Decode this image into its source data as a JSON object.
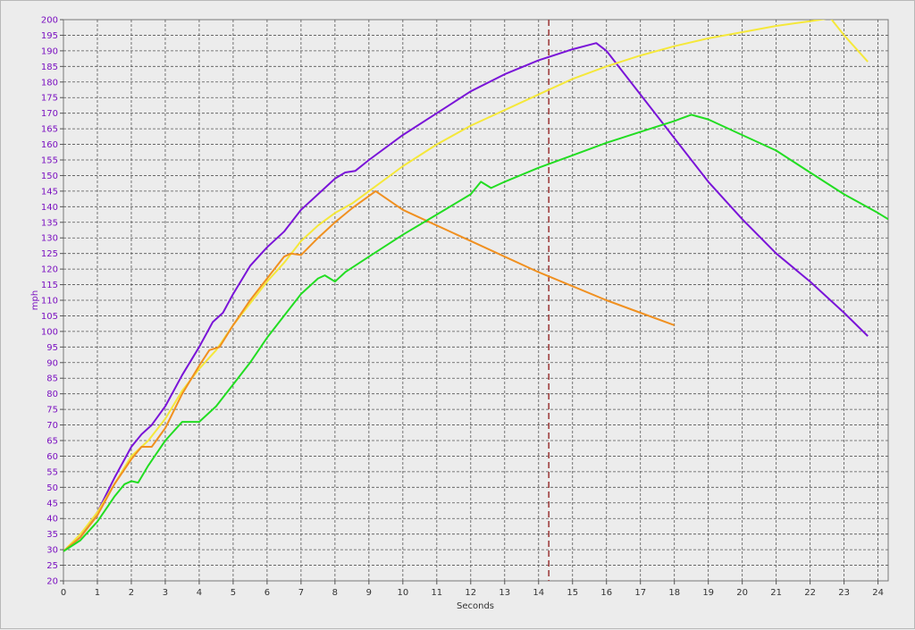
{
  "chart_data": {
    "type": "line",
    "xlabel": "Seconds",
    "ylabel": "mph",
    "xlim": [
      0,
      24.3
    ],
    "ylim": [
      20,
      200
    ],
    "x_ticks": [
      0,
      1,
      2,
      3,
      4,
      5,
      6,
      7,
      8,
      9,
      10,
      11,
      12,
      13,
      14,
      15,
      16,
      17,
      18,
      19,
      20,
      21,
      22,
      23,
      24
    ],
    "y_ticks": [
      20,
      25,
      30,
      35,
      40,
      45,
      50,
      55,
      60,
      65,
      70,
      75,
      80,
      85,
      90,
      95,
      100,
      105,
      110,
      115,
      120,
      125,
      130,
      135,
      140,
      145,
      150,
      155,
      160,
      165,
      170,
      175,
      180,
      185,
      190,
      195,
      200
    ],
    "grid": true,
    "legend": "none",
    "marker_line": {
      "x": 14.3,
      "color": "#a04040"
    },
    "series": [
      {
        "color": "#7a14d8",
        "points": [
          [
            0,
            29.5
          ],
          [
            0.5,
            34
          ],
          [
            1,
            42
          ],
          [
            1.5,
            53
          ],
          [
            2,
            63
          ],
          [
            2.3,
            67
          ],
          [
            2.6,
            70
          ],
          [
            3,
            76
          ],
          [
            3.5,
            86
          ],
          [
            4,
            95
          ],
          [
            4.4,
            103
          ],
          [
            4.7,
            106
          ],
          [
            5,
            112
          ],
          [
            5.5,
            121
          ],
          [
            6,
            127
          ],
          [
            6.5,
            132
          ],
          [
            7,
            139
          ],
          [
            7.5,
            144
          ],
          [
            8,
            149
          ],
          [
            8.3,
            151
          ],
          [
            8.6,
            151.5
          ],
          [
            9,
            155
          ],
          [
            10,
            163
          ],
          [
            11,
            170
          ],
          [
            12,
            177
          ],
          [
            13,
            182.5
          ],
          [
            14,
            187
          ],
          [
            15,
            190.5
          ],
          [
            15.7,
            192.5
          ],
          [
            16,
            190
          ],
          [
            17,
            176
          ],
          [
            18,
            162
          ],
          [
            19,
            148
          ],
          [
            20,
            136
          ],
          [
            21,
            125
          ],
          [
            22,
            116
          ],
          [
            23,
            106
          ],
          [
            23.7,
            98.5
          ]
        ]
      },
      {
        "color": "#f5e83a",
        "points": [
          [
            0,
            29.5
          ],
          [
            0.5,
            35
          ],
          [
            1,
            42
          ],
          [
            1.5,
            51
          ],
          [
            2,
            60
          ],
          [
            2.5,
            65
          ],
          [
            3,
            72
          ],
          [
            3.5,
            81
          ],
          [
            4,
            88
          ],
          [
            4.5,
            94
          ],
          [
            5,
            102
          ],
          [
            5.5,
            109
          ],
          [
            6,
            116
          ],
          [
            6.5,
            122
          ],
          [
            7,
            129
          ],
          [
            7.5,
            134
          ],
          [
            8,
            138
          ],
          [
            8.5,
            141
          ],
          [
            9,
            145
          ],
          [
            10,
            153
          ],
          [
            11,
            160
          ],
          [
            12,
            166
          ],
          [
            13,
            171
          ],
          [
            14,
            176
          ],
          [
            15,
            181
          ],
          [
            16,
            185
          ],
          [
            17,
            188.5
          ],
          [
            18,
            191.5
          ],
          [
            19,
            194
          ],
          [
            20,
            196
          ],
          [
            21,
            198
          ],
          [
            22,
            199.5
          ],
          [
            22.6,
            200.5
          ],
          [
            23,
            195
          ],
          [
            23.7,
            186.5
          ]
        ]
      },
      {
        "color": "#f09020",
        "points": [
          [
            0,
            29.5
          ],
          [
            0.5,
            34
          ],
          [
            1,
            41
          ],
          [
            1.5,
            51
          ],
          [
            2,
            59
          ],
          [
            2.3,
            63
          ],
          [
            2.6,
            63
          ],
          [
            3,
            69
          ],
          [
            3.5,
            80
          ],
          [
            4,
            89
          ],
          [
            4.3,
            94
          ],
          [
            4.6,
            95
          ],
          [
            5,
            102
          ],
          [
            5.5,
            110
          ],
          [
            6,
            117
          ],
          [
            6.5,
            124
          ],
          [
            6.7,
            125
          ],
          [
            7,
            124.5
          ],
          [
            7.5,
            130
          ],
          [
            8,
            135
          ],
          [
            8.5,
            139.5
          ],
          [
            9.2,
            145
          ],
          [
            10,
            139
          ],
          [
            11,
            134
          ],
          [
            12,
            129
          ],
          [
            13,
            124
          ],
          [
            14,
            119
          ],
          [
            15,
            114.5
          ],
          [
            16,
            110
          ],
          [
            17,
            106
          ],
          [
            18,
            102
          ]
        ]
      },
      {
        "color": "#22dd22",
        "points": [
          [
            0,
            29.5
          ],
          [
            0.5,
            33
          ],
          [
            1,
            39
          ],
          [
            1.5,
            47
          ],
          [
            1.8,
            51
          ],
          [
            2,
            52
          ],
          [
            2.2,
            51.5
          ],
          [
            2.5,
            57
          ],
          [
            3,
            65
          ],
          [
            3.5,
            71
          ],
          [
            4,
            71
          ],
          [
            4.5,
            76
          ],
          [
            5,
            83
          ],
          [
            5.5,
            90
          ],
          [
            6,
            98
          ],
          [
            6.5,
            105
          ],
          [
            7,
            112
          ],
          [
            7.5,
            117
          ],
          [
            7.7,
            118
          ],
          [
            8,
            116
          ],
          [
            8.3,
            119
          ],
          [
            9,
            124
          ],
          [
            10,
            131
          ],
          [
            11,
            137.5
          ],
          [
            12,
            144
          ],
          [
            12.3,
            148
          ],
          [
            12.6,
            146
          ],
          [
            13,
            148
          ],
          [
            14,
            152.5
          ],
          [
            15,
            156.5
          ],
          [
            16,
            160.5
          ],
          [
            17,
            164
          ],
          [
            18,
            167.5
          ],
          [
            18.5,
            169.5
          ],
          [
            19,
            168
          ],
          [
            20,
            163
          ],
          [
            21,
            158
          ],
          [
            22,
            151
          ],
          [
            23,
            144
          ],
          [
            24,
            138
          ],
          [
            24.3,
            136
          ]
        ]
      }
    ]
  }
}
